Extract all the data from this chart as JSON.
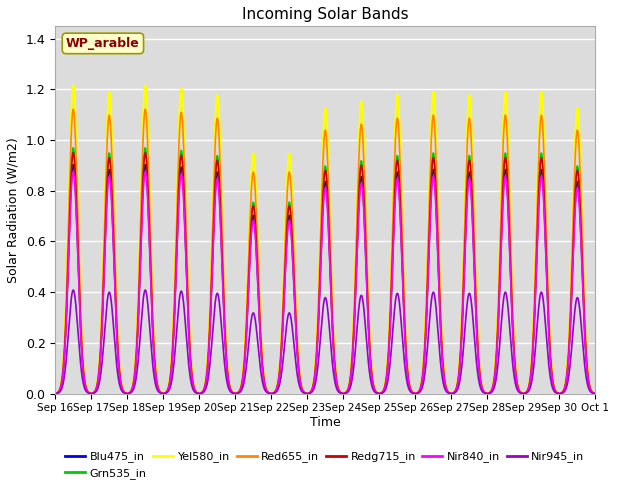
{
  "title": "Incoming Solar Bands",
  "xlabel": "Time",
  "ylabel": "Solar Radiation (W/m2)",
  "ylim": [
    0,
    1.45
  ],
  "annotation_text": "WP_arable",
  "annotation_color": "#8B0000",
  "annotation_bg": "#FFFFCC",
  "bg_color": "#DCDCDC",
  "series": [
    {
      "label": "Blu475_in",
      "color": "#0000EE",
      "lw": 1.2,
      "scale": 0.95
    },
    {
      "label": "Grn535_in",
      "color": "#00CC00",
      "lw": 1.2,
      "scale": 1.02
    },
    {
      "label": "Yel580_in",
      "color": "#FFFF00",
      "lw": 1.5,
      "scale": 1.28
    },
    {
      "label": "Red655_in",
      "color": "#FF8800",
      "lw": 1.2,
      "scale": 1.18
    },
    {
      "label": "Redg715_in",
      "color": "#CC0000",
      "lw": 1.2,
      "scale": 1.0
    },
    {
      "label": "Nir840_in",
      "color": "#FF00FF",
      "lw": 1.2,
      "scale": 0.92
    },
    {
      "label": "Nir945_in",
      "color": "#9900CC",
      "lw": 1.2,
      "scale": 0.43
    }
  ],
  "n_days": 15,
  "tick_labels": [
    "Sep 16",
    "Sep 17",
    "Sep 18",
    "Sep 19",
    "Sep 20",
    "Sep 21",
    "Sep 22",
    "Sep 23",
    "Sep 24",
    "Sep 25",
    "Sep 26",
    "Sep 27",
    "Sep 28",
    "Sep 29",
    "Sep 30",
    "Oct 1"
  ],
  "grid_color": "#FFFFFF",
  "peak_scales": [
    0.95,
    0.93,
    0.95,
    0.94,
    0.92,
    0.74,
    0.74,
    0.88,
    0.9,
    0.92,
    0.93,
    0.92,
    0.93,
    0.93,
    0.88
  ]
}
